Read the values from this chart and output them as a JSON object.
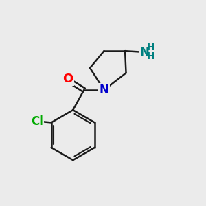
{
  "background_color": "#ebebeb",
  "bond_color": "#1a1a1a",
  "bond_width": 1.8,
  "atom_labels": {
    "O": {
      "color": "#ff0000",
      "fontsize": 12
    },
    "N": {
      "color": "#0000cc",
      "fontsize": 12
    },
    "NH2_N": {
      "color": "#008080",
      "fontsize": 11
    },
    "NH2_H": {
      "color": "#008080",
      "fontsize": 11
    },
    "Cl": {
      "color": "#00aa00",
      "fontsize": 12
    }
  },
  "figsize": [
    3.0,
    3.0
  ],
  "dpi": 100
}
